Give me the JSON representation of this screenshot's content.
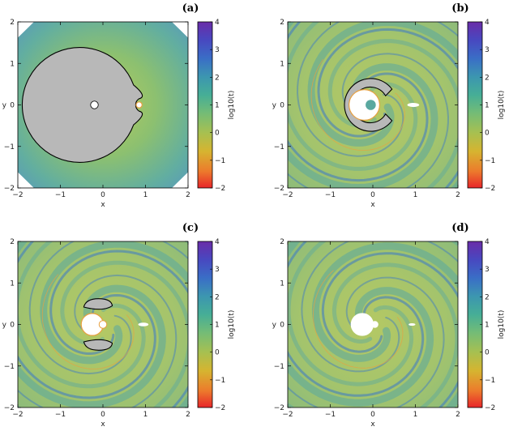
{
  "chart_data": [
    {
      "type": "heatmap",
      "panel_label": "(a)",
      "xlabel": "x",
      "ylabel": "y",
      "xlim": [
        -2,
        2
      ],
      "ylim": [
        -2,
        2
      ],
      "xticks": [
        "−2",
        "−1",
        "0",
        "1",
        "2"
      ],
      "yticks": [
        "−2",
        "−1",
        "0",
        "1",
        "2"
      ],
      "colorbar": {
        "label": "log10(t)",
        "range": [
          -2,
          4
        ],
        "ticks": [
          "−2",
          "−1",
          "0",
          "1",
          "2",
          "3",
          "4"
        ]
      },
      "forbidden_region": "large disk with notch",
      "spiral_arms": false
    },
    {
      "type": "heatmap",
      "panel_label": "(b)",
      "xlabel": "x",
      "ylabel": "y",
      "xlim": [
        -2,
        2
      ],
      "ylim": [
        -2,
        2
      ],
      "xticks": [
        "−2",
        "−1",
        "0",
        "1",
        "2"
      ],
      "yticks": [
        "−2",
        "−1",
        "0",
        "1",
        "2"
      ],
      "colorbar": {
        "label": "log10(t)",
        "range": [
          -2,
          4
        ],
        "ticks": [
          "−2",
          "−1",
          "0",
          "1",
          "2",
          "3",
          "4"
        ]
      },
      "forbidden_region": "crescent",
      "spiral_arms": true
    },
    {
      "type": "heatmap",
      "panel_label": "(c)",
      "xlabel": "x",
      "ylabel": "y",
      "xlim": [
        -2,
        2
      ],
      "ylim": [
        -2,
        2
      ],
      "xticks": [
        "−2",
        "−1",
        "0",
        "1",
        "2"
      ],
      "yticks": [
        "−2",
        "−1",
        "0",
        "1",
        "2"
      ],
      "colorbar": {
        "label": "log10(t)",
        "range": [
          -2,
          4
        ],
        "ticks": [
          "−2",
          "−1",
          "0",
          "1",
          "2",
          "3",
          "4"
        ]
      },
      "forbidden_region": "two lobes",
      "spiral_arms": true
    },
    {
      "type": "heatmap",
      "panel_label": "(d)",
      "xlabel": "x",
      "ylabel": "y",
      "xlim": [
        -2,
        2
      ],
      "ylim": [
        -2,
        2
      ],
      "xticks": [
        "−2",
        "−1",
        "0",
        "1",
        "2"
      ],
      "yticks": [
        "−2",
        "−1",
        "0",
        "1",
        "2"
      ],
      "colorbar": {
        "label": "log10(t)",
        "range": [
          -2,
          4
        ],
        "ticks": [
          "−2",
          "−1",
          "0",
          "1",
          "2",
          "3",
          "4"
        ]
      },
      "forbidden_region": "none",
      "spiral_arms": true
    }
  ],
  "colors": {
    "background_green": "#a8c870",
    "teal": "#5aa8a0",
    "blue": "#3a78c8",
    "forbidden_gray": "#b8b8b8",
    "orange_trace": "#e8a040"
  }
}
